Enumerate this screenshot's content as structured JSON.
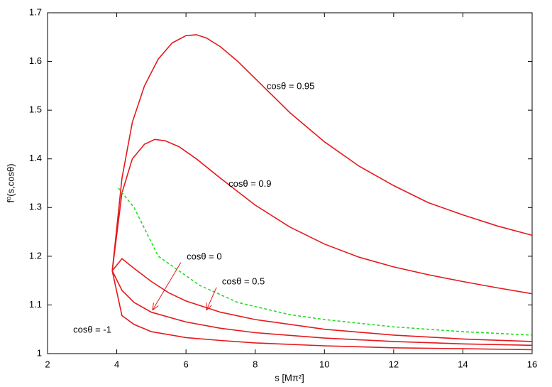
{
  "chart_data": {
    "type": "line",
    "x_label": "s [Mπ²]",
    "y_label": "f⁰(s,cosθ)",
    "xlim": [
      2,
      16
    ],
    "ylim": [
      1,
      1.7
    ],
    "xticks": [
      2,
      4,
      6,
      8,
      10,
      12,
      14,
      16
    ],
    "yticks": [
      1,
      1.1,
      1.2,
      1.3,
      1.4,
      1.5,
      1.6,
      1.7
    ],
    "series": [
      {
        "color": "#e41a1c",
        "dash": false,
        "x": [
          3.87,
          4.15,
          4.45,
          4.8,
          5.2,
          5.6,
          6.0,
          6.3,
          6.6,
          7,
          7.5,
          8,
          9,
          10,
          11,
          12,
          13,
          14,
          15,
          16
        ],
        "values": [
          1.17,
          1.36,
          1.475,
          1.55,
          1.605,
          1.638,
          1.653,
          1.655,
          1.648,
          1.63,
          1.6,
          1.565,
          1.495,
          1.435,
          1.385,
          1.345,
          1.31,
          1.285,
          1.262,
          1.243
        ]
      },
      {
        "color": "#e41a1c",
        "dash": false,
        "x": [
          3.87,
          4.15,
          4.45,
          4.8,
          5.1,
          5.4,
          5.8,
          6.3,
          7,
          8,
          9,
          10,
          11,
          12,
          13,
          14,
          15,
          16
        ],
        "values": [
          1.17,
          1.33,
          1.4,
          1.43,
          1.44,
          1.437,
          1.425,
          1.4,
          1.36,
          1.305,
          1.26,
          1.225,
          1.198,
          1.178,
          1.162,
          1.148,
          1.135,
          1.123
        ]
      },
      {
        "color": "#22dd22",
        "dash": true,
        "x": [
          4.05,
          4.5,
          5.2,
          6.4,
          7.5,
          9,
          10,
          12,
          14,
          16
        ],
        "values": [
          1.34,
          1.3,
          1.2,
          1.14,
          1.105,
          1.08,
          1.07,
          1.055,
          1.045,
          1.038
        ]
      },
      {
        "color": "#e41a1c",
        "dash": false,
        "x": [
          3.87,
          4.15,
          4.5,
          5,
          5.5,
          6,
          7,
          8,
          10,
          12,
          14,
          16
        ],
        "values": [
          1.17,
          1.195,
          1.175,
          1.148,
          1.125,
          1.108,
          1.085,
          1.07,
          1.05,
          1.038,
          1.03,
          1.025
        ]
      },
      {
        "color": "#e41a1c",
        "dash": false,
        "x": [
          3.87,
          4.15,
          4.5,
          5,
          6,
          7,
          8,
          10,
          12,
          14,
          16
        ],
        "values": [
          1.17,
          1.13,
          1.105,
          1.085,
          1.065,
          1.052,
          1.043,
          1.032,
          1.025,
          1.02,
          1.017
        ]
      },
      {
        "color": "#e41a1c",
        "dash": false,
        "x": [
          3.87,
          4.15,
          4.5,
          5,
          6,
          7,
          8,
          10,
          12,
          14,
          16
        ],
        "values": [
          1.17,
          1.078,
          1.06,
          1.045,
          1.033,
          1.027,
          1.022,
          1.016,
          1.012,
          1.01,
          1.008
        ]
      }
    ],
    "annotations": [
      {
        "text": "cosθ = 0.95",
        "x": 8.33,
        "y": 1.548
      },
      {
        "text": "cosθ = 0.9",
        "x": 7.23,
        "y": 1.348
      },
      {
        "text": "cosθ = 0",
        "x": 6.02,
        "y": 1.198,
        "arrow_from": [
          5.85,
          1.187
        ],
        "arrow_to": [
          5.03,
          1.089
        ]
      },
      {
        "text": "cosθ = 0.5",
        "x": 7.04,
        "y": 1.147,
        "arrow_from": [
          6.88,
          1.136
        ],
        "arrow_to": [
          6.59,
          1.089
        ]
      },
      {
        "text": "cosθ = -1",
        "x": 2.74,
        "y": 1.048
      }
    ]
  }
}
